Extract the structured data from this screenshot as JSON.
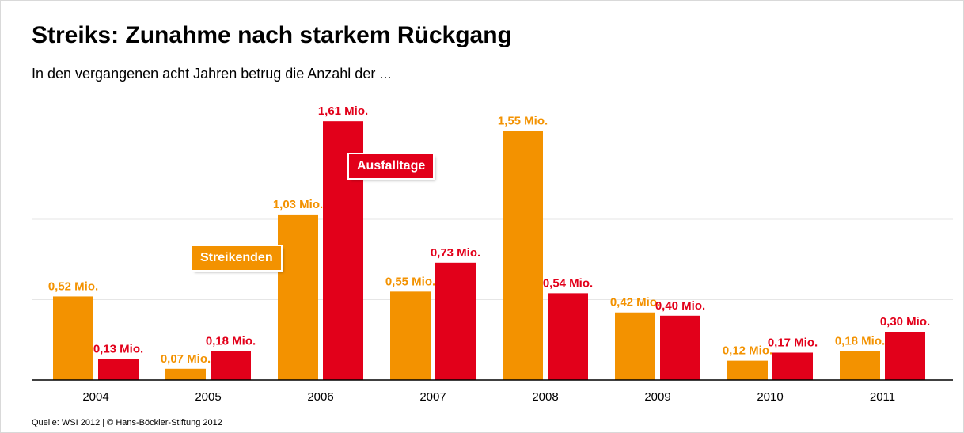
{
  "title": "Streiks: Zunahme nach starkem Rückgang",
  "subtitle": "In den vergangenen acht Jahren betrug die Anzahl der ...",
  "source": "Quelle: WSI 2012 | © Hans-Böckler-Stiftung 2012",
  "colors": {
    "streikende": "#f39200",
    "ausfalltage": "#e2001a",
    "grid": "#e6e6e6",
    "axis": "#000000"
  },
  "chart_data": {
    "type": "bar",
    "categories": [
      "2004",
      "2005",
      "2006",
      "2007",
      "2008",
      "2009",
      "2010",
      "2011"
    ],
    "series": [
      {
        "name": "Streikenden",
        "values": [
          0.52,
          0.07,
          1.03,
          0.55,
          1.55,
          0.42,
          0.12,
          0.18
        ],
        "labels": [
          "0,52 Mio.",
          "0,07 Mio.",
          "1,03 Mio.",
          "0,55 Mio.",
          "1,55 Mio.",
          "0,42 Mio.",
          "0,12 Mio.",
          "0,18 Mio."
        ]
      },
      {
        "name": "Ausfalltage",
        "values": [
          0.13,
          0.18,
          1.61,
          0.73,
          0.54,
          0.4,
          0.17,
          0.3
        ],
        "labels": [
          "0,13 Mio.",
          "0,18 Mio.",
          "1,61 Mio.",
          "0,73 Mio.",
          "0,54 Mio.",
          "0,40 Mio.",
          "0,17 Mio.",
          "0,30 Mio."
        ]
      }
    ],
    "ylim": [
      0,
      1.6
    ],
    "gridlines": [
      0.5,
      1.0,
      1.5
    ],
    "grid": true
  }
}
